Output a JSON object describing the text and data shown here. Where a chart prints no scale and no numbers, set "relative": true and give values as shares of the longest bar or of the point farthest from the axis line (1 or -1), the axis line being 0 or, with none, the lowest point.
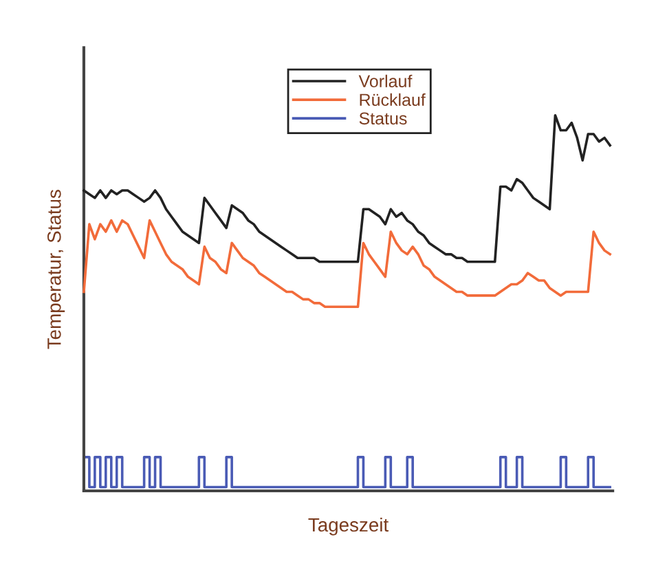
{
  "chart_data": {
    "type": "line",
    "relative": true,
    "xlabel": "Tageszeit",
    "ylabel": "Temperatur, Status",
    "categories": [
      null,
      null,
      null,
      null,
      null,
      null,
      null,
      null,
      null,
      null,
      null,
      null,
      null,
      null,
      null,
      null,
      null,
      null,
      null,
      null,
      null,
      null,
      null,
      null,
      null,
      null,
      null,
      null,
      null,
      null,
      null,
      null,
      null,
      null,
      null,
      null,
      null,
      null,
      null,
      null,
      null,
      null,
      null,
      null,
      null,
      null,
      null,
      null,
      null,
      null,
      null,
      null,
      null,
      null,
      null,
      null,
      null,
      null,
      null,
      null,
      null,
      null,
      null,
      null,
      null,
      null,
      null,
      null,
      null,
      null,
      null,
      null,
      null,
      null,
      null,
      null,
      null,
      null,
      null,
      null,
      null,
      null,
      null,
      null,
      null,
      null,
      null,
      null,
      null,
      null,
      null,
      null,
      null,
      null,
      null,
      null,
      null
    ],
    "tick_labels": false,
    "legend": "top",
    "marker": "none",
    "line_style": "solid",
    "series": [
      {
        "name": "Vorlauf",
        "color": "#222222",
        "values": [
          0.8,
          0.79,
          0.78,
          0.8,
          0.78,
          0.8,
          0.79,
          0.8,
          0.8,
          0.79,
          0.78,
          0.77,
          0.78,
          0.8,
          0.78,
          0.75,
          0.73,
          0.71,
          0.69,
          0.68,
          0.67,
          0.66,
          0.78,
          0.76,
          0.74,
          0.72,
          0.7,
          0.76,
          0.75,
          0.74,
          0.72,
          0.71,
          0.69,
          0.68,
          0.67,
          0.66,
          0.65,
          0.64,
          0.63,
          0.62,
          0.62,
          0.62,
          0.62,
          0.61,
          0.61,
          0.61,
          0.61,
          0.61,
          0.61,
          0.61,
          0.61,
          0.75,
          0.75,
          0.74,
          0.73,
          0.71,
          0.75,
          0.73,
          0.74,
          0.72,
          0.71,
          0.69,
          0.68,
          0.66,
          0.65,
          0.64,
          0.63,
          0.63,
          0.62,
          0.62,
          0.61,
          0.61,
          0.61,
          0.61,
          0.61,
          0.61,
          0.81,
          0.81,
          0.8,
          0.83,
          0.82,
          0.8,
          0.78,
          0.77,
          0.76,
          0.75,
          1.0,
          0.96,
          0.96,
          0.98,
          0.94,
          0.88,
          0.95,
          0.95,
          0.93,
          0.94,
          0.92
        ]
      },
      {
        "name": "Rücklauf",
        "color": "#f26b3a",
        "values": [
          0.53,
          0.71,
          0.67,
          0.71,
          0.69,
          0.72,
          0.69,
          0.72,
          0.71,
          0.68,
          0.65,
          0.62,
          0.72,
          0.69,
          0.66,
          0.63,
          0.61,
          0.6,
          0.59,
          0.57,
          0.56,
          0.55,
          0.65,
          0.62,
          0.61,
          0.59,
          0.58,
          0.66,
          0.64,
          0.62,
          0.61,
          0.6,
          0.58,
          0.57,
          0.56,
          0.55,
          0.54,
          0.53,
          0.53,
          0.52,
          0.51,
          0.51,
          0.5,
          0.5,
          0.49,
          0.49,
          0.49,
          0.49,
          0.49,
          0.49,
          0.49,
          0.66,
          0.63,
          0.61,
          0.59,
          0.57,
          0.69,
          0.66,
          0.64,
          0.63,
          0.65,
          0.63,
          0.6,
          0.59,
          0.57,
          0.56,
          0.55,
          0.54,
          0.53,
          0.53,
          0.52,
          0.52,
          0.52,
          0.52,
          0.52,
          0.52,
          0.53,
          0.54,
          0.55,
          0.55,
          0.56,
          0.58,
          0.57,
          0.56,
          0.56,
          0.54,
          0.53,
          0.52,
          0.53,
          0.53,
          0.53,
          0.53,
          0.53,
          0.69,
          0.66,
          0.64,
          0.63
        ]
      },
      {
        "name": "Status",
        "type": "step",
        "color": "#4a5bb5",
        "values": [
          0.09,
          0.01,
          0.09,
          0.01,
          0.09,
          0.01,
          0.09,
          0.01,
          0.01,
          0.01,
          0.01,
          0.09,
          0.01,
          0.09,
          0.01,
          0.01,
          0.01,
          0.01,
          0.01,
          0.01,
          0.01,
          0.09,
          0.01,
          0.01,
          0.01,
          0.01,
          0.09,
          0.01,
          0.01,
          0.01,
          0.01,
          0.01,
          0.01,
          0.01,
          0.01,
          0.01,
          0.01,
          0.01,
          0.01,
          0.01,
          0.01,
          0.01,
          0.01,
          0.01,
          0.01,
          0.01,
          0.01,
          0.01,
          0.01,
          0.01,
          0.09,
          0.01,
          0.01,
          0.01,
          0.01,
          0.09,
          0.01,
          0.01,
          0.01,
          0.09,
          0.01,
          0.01,
          0.01,
          0.01,
          0.01,
          0.01,
          0.01,
          0.01,
          0.01,
          0.01,
          0.01,
          0.01,
          0.01,
          0.01,
          0.01,
          0.01,
          0.09,
          0.01,
          0.01,
          0.09,
          0.01,
          0.01,
          0.01,
          0.01,
          0.01,
          0.01,
          0.01,
          0.09,
          0.01,
          0.01,
          0.01,
          0.01,
          0.09,
          0.01,
          0.01,
          0.01,
          0.01
        ]
      }
    ]
  }
}
